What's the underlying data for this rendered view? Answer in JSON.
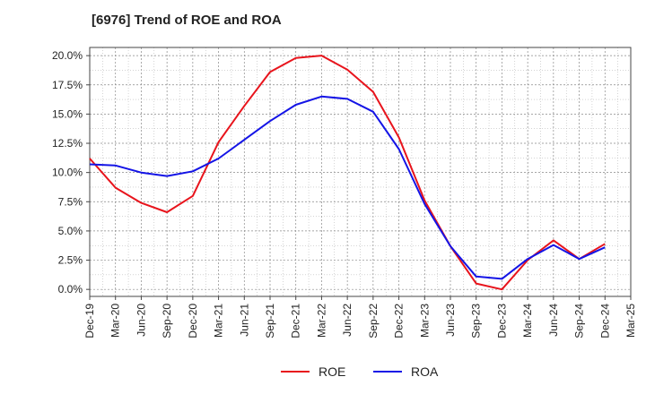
{
  "chart_data": {
    "type": "line",
    "title": "[6976]  Trend of ROE and ROA",
    "xlabel": "",
    "ylabel": "",
    "ylim": [
      -0.6,
      20.7
    ],
    "yticks": [
      "0.0%",
      "2.5%",
      "5.0%",
      "7.5%",
      "10.0%",
      "12.5%",
      "15.0%",
      "17.5%",
      "20.0%"
    ],
    "ytick_values": [
      0,
      2.5,
      5,
      7.5,
      10,
      12.5,
      15,
      17.5,
      20
    ],
    "xticks": [
      "Dec-19",
      "Mar-20",
      "Jun-20",
      "Sep-20",
      "Dec-20",
      "Mar-21",
      "Jun-21",
      "Sep-21",
      "Dec-21",
      "Mar-22",
      "Jun-22",
      "Sep-22",
      "Dec-22",
      "Mar-23",
      "Jun-23",
      "Sep-23",
      "Dec-23",
      "Mar-24",
      "Jun-24",
      "Sep-24",
      "Dec-24",
      "Mar-25"
    ],
    "grid": true,
    "legend_position": "bottom",
    "series": [
      {
        "name": "ROE",
        "color": "#e8141c",
        "values": [
          11.2,
          8.7,
          7.4,
          6.6,
          8.0,
          12.6,
          15.7,
          18.6,
          19.8,
          20.0,
          18.8,
          16.9,
          13.0,
          7.6,
          3.7,
          0.5,
          0.0,
          2.5,
          4.2,
          2.6,
          3.9
        ]
      },
      {
        "name": "ROA",
        "color": "#1414e6",
        "values": [
          10.7,
          10.6,
          10.0,
          9.7,
          10.1,
          11.2,
          12.8,
          14.4,
          15.8,
          16.5,
          16.3,
          15.2,
          12.0,
          7.3,
          3.7,
          1.1,
          0.9,
          2.6,
          3.8,
          2.6,
          3.6
        ]
      }
    ]
  }
}
